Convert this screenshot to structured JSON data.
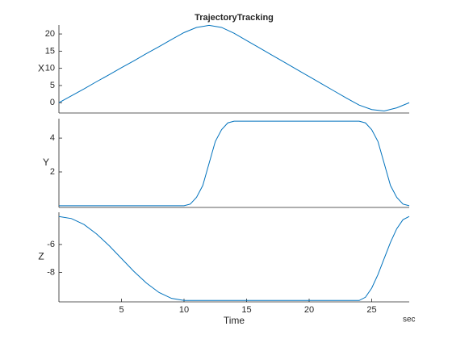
{
  "chart_data": [
    {
      "type": "line",
      "title": "TrajectoryTracking",
      "ylabel": "X",
      "x": [
        0,
        1,
        2,
        3,
        4,
        5,
        6,
        7,
        8,
        9,
        10,
        11,
        12,
        13,
        14,
        15,
        16,
        17,
        18,
        19,
        20,
        21,
        22,
        23,
        24,
        25,
        26,
        27,
        28
      ],
      "series": [
        {
          "color": "#0072bd",
          "values": [
            0,
            2,
            4,
            6.1,
            8.1,
            10.2,
            12.2,
            14.3,
            16.3,
            18.4,
            20.4,
            21.9,
            22.5,
            21.9,
            20.2,
            18.1,
            16,
            13.9,
            11.8,
            9.7,
            7.6,
            5.5,
            3.4,
            1.3,
            -0.7,
            -2,
            -2.4,
            -1.5,
            0
          ]
        }
      ],
      "xlim": [
        0,
        28
      ],
      "ylim": [
        -3,
        22.6
      ],
      "yticks": [
        0,
        5,
        10,
        15,
        20
      ]
    },
    {
      "type": "line",
      "ylabel": "Y",
      "x": [
        0,
        10,
        10.5,
        11,
        11.5,
        12,
        12.5,
        13,
        13.5,
        14,
        24,
        24.5,
        25,
        25.5,
        26,
        26.5,
        27,
        27.5,
        28
      ],
      "series": [
        {
          "color": "#0072bd",
          "values": [
            0,
            0,
            0.1,
            0.5,
            1.2,
            2.5,
            3.8,
            4.5,
            4.9,
            5,
            5,
            4.9,
            4.5,
            3.8,
            2.5,
            1.2,
            0.5,
            0.1,
            0
          ]
        }
      ],
      "xlim": [
        0,
        28
      ],
      "ylim": [
        -0.1,
        5.15
      ],
      "yticks": [
        2,
        4
      ]
    },
    {
      "type": "line",
      "ylabel": "Z",
      "xlabel": "Time",
      "annotation": "sec",
      "x": [
        0,
        1,
        2,
        3,
        4,
        5,
        6,
        7,
        8,
        9,
        10,
        24,
        24.5,
        25,
        25.5,
        26,
        26.5,
        27,
        27.5,
        28
      ],
      "series": [
        {
          "color": "#0072bd",
          "values": [
            -4,
            -4.15,
            -4.57,
            -5.24,
            -6.07,
            -7,
            -7.93,
            -8.76,
            -9.43,
            -9.85,
            -10,
            -10,
            -9.77,
            -9.12,
            -8.15,
            -7,
            -5.85,
            -4.88,
            -4.23,
            -4
          ]
        }
      ],
      "xlim": [
        0,
        28
      ],
      "ylim": [
        -10.1,
        -3.7
      ],
      "yticks": [
        -8,
        -6
      ],
      "xticks": [
        5,
        10,
        15,
        20,
        25
      ]
    }
  ]
}
